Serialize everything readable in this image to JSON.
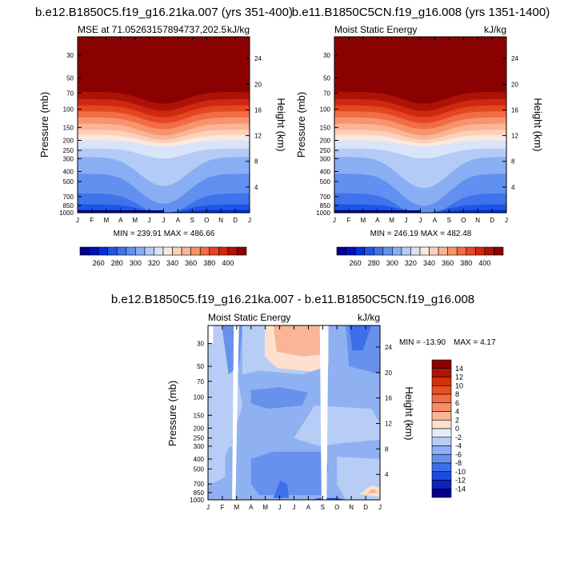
{
  "chart_data": [
    {
      "type": "heatmap",
      "title": "b.e12.B1850C5.f19_g16.21ka.007 (yrs 351-400)",
      "subtitle_left": "MSE at 71.05263157894737,202.5",
      "subtitle_right": "kJ/kg",
      "ylabel": "Pressure (mb)",
      "ylabel_right": "Height (km)",
      "x": [
        "J",
        "F",
        "M",
        "A",
        "M",
        "J",
        "J",
        "A",
        "S",
        "O",
        "N",
        "D",
        "J"
      ],
      "pressure_ticks": [
        "30",
        "50",
        "70",
        "100",
        "150",
        "200",
        "250",
        "300",
        "400",
        "500",
        "700",
        "850",
        "1000"
      ],
      "height_ticks": [
        "4",
        "8",
        "12",
        "16",
        "20",
        "24"
      ],
      "stats": "MIN = 239.91   MAX = 486.66",
      "min": 239.91,
      "max": 486.66,
      "ylim_mb": [
        1000,
        20
      ],
      "surface_bands": [
        14,
        22,
        30,
        32,
        34,
        40,
        46
      ]
    },
    {
      "type": "heatmap",
      "title": "b.e11.B1850C5CN.f19_g16.008 (yrs 1351-1400)",
      "subtitle_left": "Moist Static Energy",
      "subtitle_right": "kJ/kg",
      "ylabel": "Pressure (mb)",
      "ylabel_right": "Height (km)",
      "x": [
        "J",
        "F",
        "M",
        "A",
        "M",
        "J",
        "J",
        "A",
        "S",
        "O",
        "N",
        "D",
        "J"
      ],
      "pressure_ticks": [
        "30",
        "50",
        "70",
        "100",
        "150",
        "200",
        "250",
        "300",
        "400",
        "500",
        "700",
        "850",
        "1000"
      ],
      "height_ticks": [
        "4",
        "8",
        "12",
        "16",
        "20",
        "24"
      ],
      "stats": "MIN = 246.19   MAX = 482.48",
      "min": 246.19,
      "max": 482.48,
      "ylim_mb": [
        1000,
        20
      ],
      "surface_bands": [
        14,
        22,
        30,
        32,
        34,
        40,
        46
      ]
    },
    {
      "type": "heatmap",
      "title": "b.e12.B1850C5.f19_g16.21ka.007 - b.e11.B1850C5CN.f19_g16.008",
      "subtitle_left": "Moist Static Energy",
      "subtitle_right": "kJ/kg",
      "ylabel": "Pressure (mb)",
      "ylabel_right": "Height (km)",
      "x": [
        "J",
        "F",
        "M",
        "A",
        "M",
        "J",
        "J",
        "A",
        "S",
        "O",
        "N",
        "D",
        "J"
      ],
      "pressure_ticks": [
        "30",
        "50",
        "70",
        "100",
        "150",
        "200",
        "250",
        "300",
        "400",
        "500",
        "700",
        "850",
        "1000"
      ],
      "height_ticks": [
        "4",
        "8",
        "12",
        "16",
        "20",
        "24"
      ],
      "stats_min": "MIN = -13.90",
      "stats_max": "MAX =   4.17",
      "min": -13.9,
      "max": 4.17,
      "ylim_mb": [
        1000,
        20
      ]
    }
  ],
  "colorbar_abs": {
    "labels": [
      "260",
      "280",
      "300",
      "320",
      "340",
      "360",
      "380",
      "400"
    ],
    "colors": [
      "#00008a",
      "#0010b8",
      "#0030d8",
      "#1f55e6",
      "#3f73ec",
      "#6290f0",
      "#89aef3",
      "#b3cbf6",
      "#d8e4f8",
      "#fbe9df",
      "#fcd1bb",
      "#fab595",
      "#f7946e",
      "#f26c46",
      "#e54622",
      "#cf2810",
      "#ad1206",
      "#8b0000"
    ]
  },
  "colorbar_diff": {
    "labels": [
      "14",
      "12",
      "10",
      "8",
      "6",
      "4",
      "2",
      "0",
      "-2",
      "-4",
      "-6",
      "-8",
      "-10",
      "-12",
      "-14"
    ],
    "colors": [
      "#8b0000",
      "#b01405",
      "#d2300f",
      "#e84d23",
      "#f26b43",
      "#f68e68",
      "#fab497",
      "#fde0ce",
      "#e4edfa",
      "#b7cdf5",
      "#8fb1f2",
      "#6891ee",
      "#3e6fea",
      "#1d49df",
      "#0a23c4",
      "#00008a"
    ]
  },
  "colors": {
    "land": "#ffffff",
    "axis": "#000000",
    "background": "#ffffff"
  }
}
